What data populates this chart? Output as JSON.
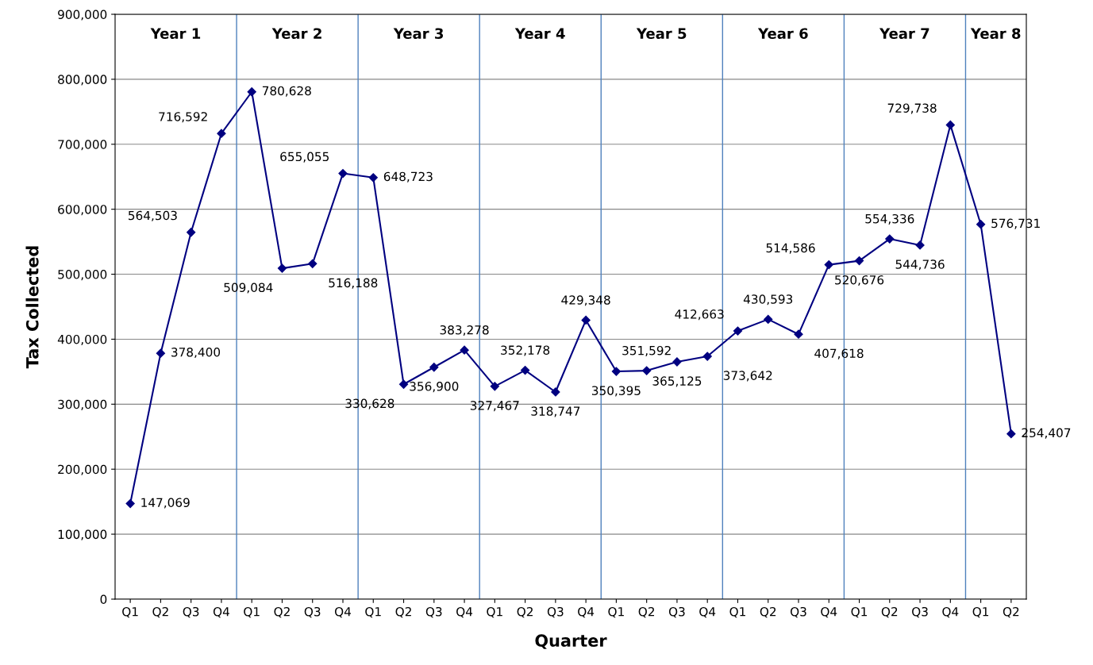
{
  "chart_data": {
    "type": "line",
    "xlabel": "Quarter",
    "ylabel": "Tax Collected",
    "categories": [
      "Q1",
      "Q2",
      "Q3",
      "Q4",
      "Q1",
      "Q2",
      "Q3",
      "Q4",
      "Q1",
      "Q2",
      "Q3",
      "Q4",
      "Q1",
      "Q2",
      "Q3",
      "Q4",
      "Q1",
      "Q2",
      "Q3",
      "Q4",
      "Q1",
      "Q2",
      "Q3",
      "Q4",
      "Q1",
      "Q2",
      "Q3",
      "Q4",
      "Q1",
      "Q2"
    ],
    "series": [
      {
        "color": "#000080",
        "values": [
          147069,
          378400,
          564503,
          716592,
          780628,
          509084,
          516188,
          655055,
          648723,
          330628,
          356900,
          383278,
          327467,
          352178,
          318747,
          429348,
          350395,
          351592,
          365125,
          373642,
          412663,
          430593,
          407618,
          514586,
          520676,
          554336,
          544736,
          729738,
          576731,
          254407
        ],
        "value_labels": [
          "147,069",
          "378,400",
          "564,503",
          "716,592",
          "780,628",
          "509,084",
          "516,188",
          "655,055",
          "648,723",
          "330,628",
          "356,900",
          "383,278",
          "327,467",
          "352,178",
          "318,747",
          "429,348",
          "350,395",
          "351,592",
          "365,125",
          "373,642",
          "412,663",
          "430,593",
          "407,618",
          "514,586",
          "520,676",
          "554,336",
          "544,736",
          "729,738",
          "576,731",
          "254,407"
        ]
      }
    ],
    "ylim": [
      0,
      900000
    ],
    "yticks": [
      {
        "value": 0,
        "label": "0"
      },
      {
        "value": 100000,
        "label": "100,000"
      },
      {
        "value": 200000,
        "label": "200,000"
      },
      {
        "value": 300000,
        "label": "300,000"
      },
      {
        "value": 400000,
        "label": "400,000"
      },
      {
        "value": 500000,
        "label": "500,000"
      },
      {
        "value": 600000,
        "label": "600,000"
      },
      {
        "value": 700000,
        "label": "700,000"
      },
      {
        "value": 800000,
        "label": "800,000"
      },
      {
        "value": 900000,
        "label": "900,000"
      }
    ],
    "annotations": [
      "Year 1",
      "Year 2",
      "Year 3",
      "Year 4",
      "Year 5",
      "Year 6",
      "Year 7",
      "Year 8"
    ],
    "grid": "y",
    "marker": "diamond",
    "line_style": "solid"
  }
}
